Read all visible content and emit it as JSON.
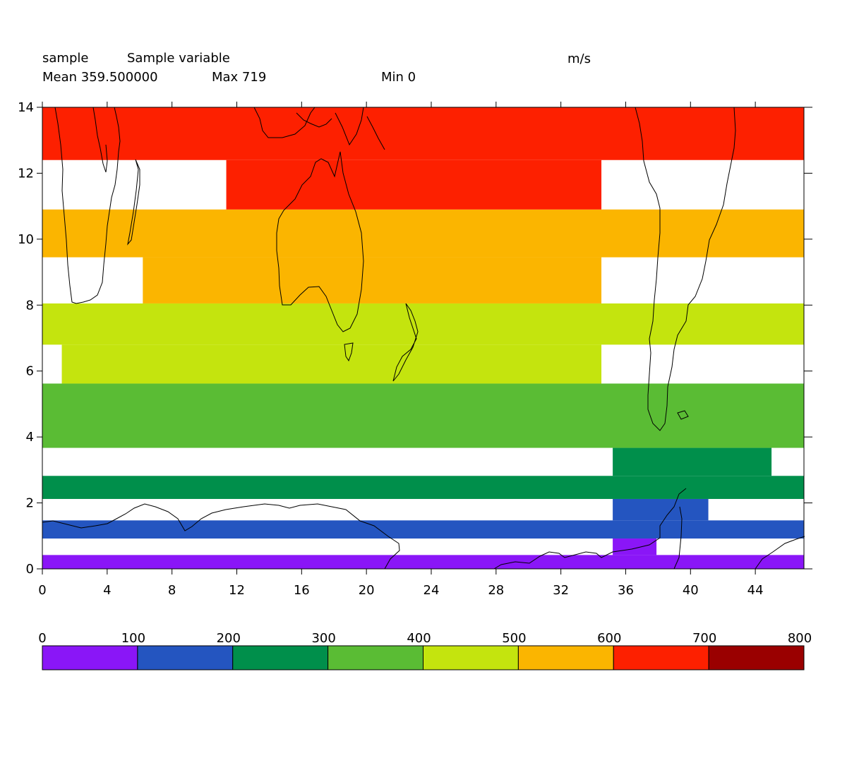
{
  "header": {
    "name": "sample",
    "long_name": "Sample variable",
    "units": "m/s",
    "mean": "Mean 359.500000",
    "max": "Max 719",
    "min": "Min 0"
  },
  "chart_data": {
    "type": "heatmap",
    "xlim": [
      0,
      47
    ],
    "ylim": [
      0,
      14
    ],
    "x_ticks": [
      0,
      4,
      8,
      12,
      16,
      20,
      24,
      28,
      32,
      36,
      40,
      44
    ],
    "y_ticks": [
      0,
      2,
      4,
      6,
      8,
      10,
      12,
      14
    ],
    "grid": false,
    "colorbar": {
      "levels": [
        0,
        100,
        200,
        300,
        400,
        500,
        600,
        700,
        800
      ],
      "colors": [
        "#8a16f7",
        "#2455c0",
        "#008f4b",
        "#5abc34",
        "#c4e40e",
        "#fbb500",
        "#fd2000",
        "#9a0000"
      ],
      "placement": "bottom"
    },
    "cells": [
      {
        "x0": 0,
        "x1": 47,
        "y0": 0,
        "y1": 0.42,
        "level": 0
      },
      {
        "x0": 35.2,
        "x1": 37.9,
        "y0": 0.42,
        "y1": 0.92,
        "level": 0
      },
      {
        "x0": 0,
        "x1": 47,
        "y0": 0.92,
        "y1": 1.47,
        "level": 1
      },
      {
        "x0": 35.2,
        "x1": 41.1,
        "y0": 1.47,
        "y1": 2.12,
        "level": 1
      },
      {
        "x0": 0,
        "x1": 47,
        "y0": 2.12,
        "y1": 2.82,
        "level": 2
      },
      {
        "x0": 35.2,
        "x1": 45.0,
        "y0": 2.82,
        "y1": 3.67,
        "level": 2
      },
      {
        "x0": 0,
        "x1": 47,
        "y0": 3.67,
        "y1": 5.62,
        "level": 3
      },
      {
        "x0": 1.2,
        "x1": 34.5,
        "y0": 5.62,
        "y1": 6.8,
        "level": 4
      },
      {
        "x0": 0,
        "x1": 47,
        "y0": 6.8,
        "y1": 8.05,
        "level": 4
      },
      {
        "x0": 6.2,
        "x1": 34.5,
        "y0": 8.05,
        "y1": 9.45,
        "level": 5
      },
      {
        "x0": 0,
        "x1": 47,
        "y0": 9.45,
        "y1": 10.9,
        "level": 5
      },
      {
        "x0": 11.35,
        "x1": 34.5,
        "y0": 10.9,
        "y1": 12.4,
        "level": 6
      },
      {
        "x0": 0,
        "x1": 47,
        "y0": 12.4,
        "y1": 14,
        "level": 6
      }
    ]
  }
}
